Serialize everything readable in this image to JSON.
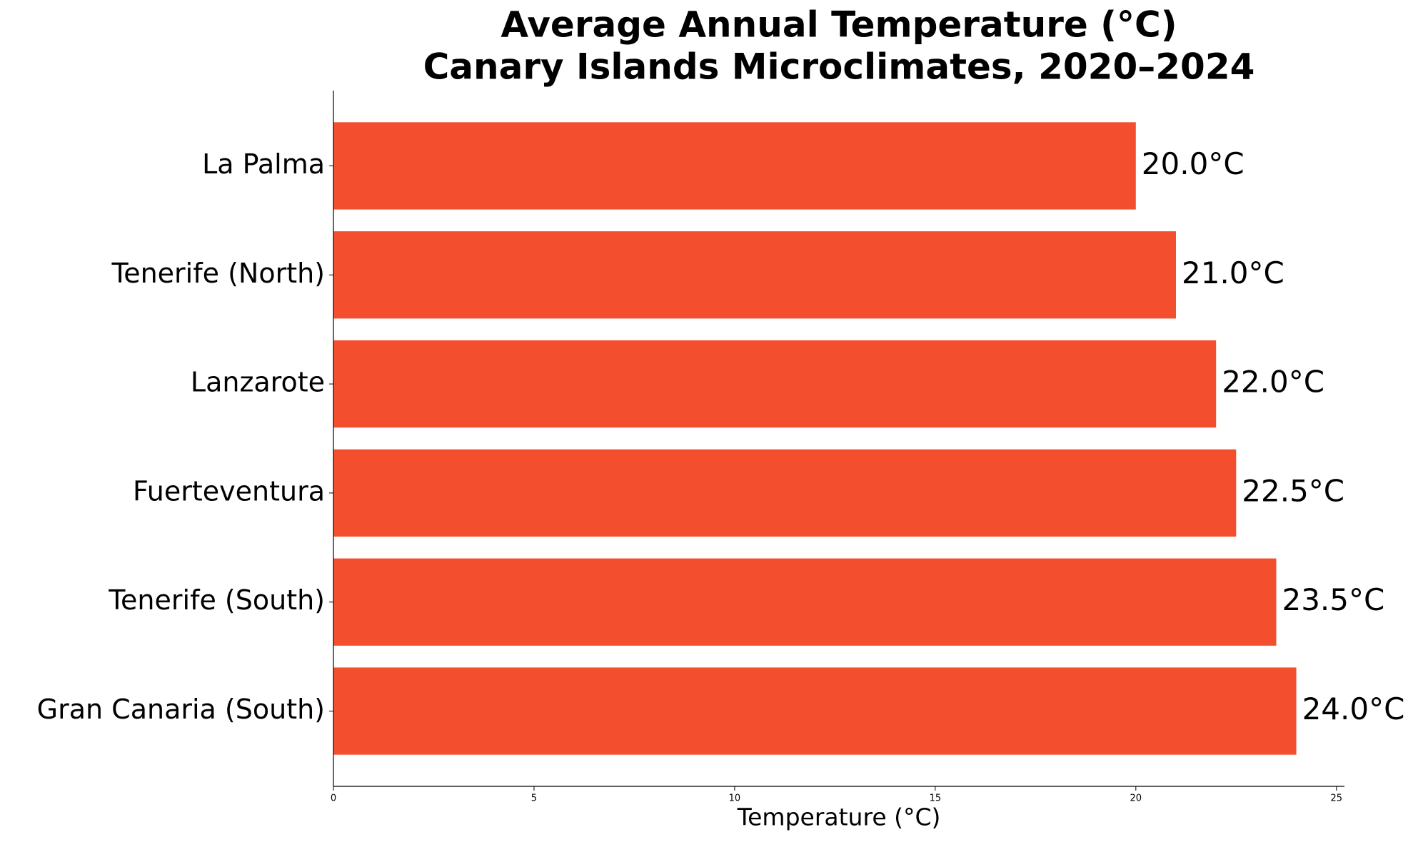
{
  "chart_data": {
    "type": "bar",
    "orientation": "horizontal",
    "title": "Average Annual Temperature (°C)",
    "subtitle": "Canary Islands Microclimates, 2020–2024",
    "x_label": "Temperature (°C)",
    "categories": [
      "La Palma",
      "Tenerife (North)",
      "Lanzarote",
      "Fuerteventura",
      "Tenerife (South)",
      "Gran Canaria (South)"
    ],
    "values": [
      20.0,
      21.0,
      22.0,
      22.5,
      23.5,
      24.0
    ],
    "value_labels": [
      "20.0°C",
      "21.0°C",
      "22.0°C",
      "22.5°C",
      "23.5°C",
      "24.0°C"
    ],
    "color": "#f34f2f",
    "xlim": [
      0,
      25.2
    ],
    "xticks": [
      0,
      5,
      10,
      15,
      20,
      25
    ],
    "grid": false
  }
}
